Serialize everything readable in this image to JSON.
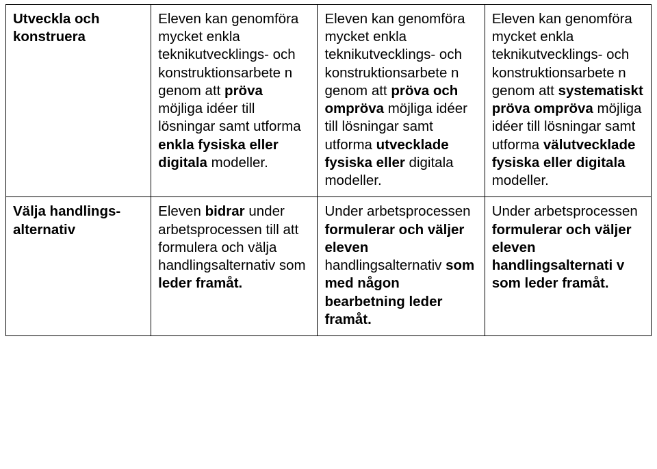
{
  "table": {
    "rows": [
      {
        "label_html": "<span class='b'>Utveckla och konstruera</span>",
        "cells": [
          "Eleven kan genomföra mycket enkla teknikutvecklings- och konstruktionsarbete n genom att <span class='b'>pröva</span> möjliga idéer till lösningar samt utforma <span class='b'>enkla fysiska eller digitala</span> modeller.",
          "Eleven kan genomföra mycket enkla teknikutvecklings- och konstruktionsarbete n genom att <span class='b'>pröva och ompröva</span> möjliga idéer till lösningar samt utforma <span class='b'>utvecklade fysiska eller</span> digitala modeller.",
          "Eleven kan genomföra mycket enkla teknikutvecklings- och konstruktionsarbete n genom att <span class='b'>systematiskt pröva ompröva</span> möjliga idéer till lösningar samt utforma <span class='b'>välutvecklade fysiska eller digitala</span> modeller."
        ]
      },
      {
        "label_html": "<span class='b'>Välja handlings- alternativ</span>",
        "cells": [
          "Eleven <span class='b'>bidrar</span> under arbetsprocessen till att formulera och välja handlingsalternativ som <span class='b'>leder framåt.</span>",
          "Under arbetsprocessen <span class='b'>formulerar och väljer eleven</span> handlingsalternativ <span class='b'>som med någon bearbetning leder framåt.</span>",
          "Under arbetsprocessen <span class='b'>formulerar och väljer eleven handlingsalternati v som leder framåt.</span>"
        ]
      }
    ]
  }
}
